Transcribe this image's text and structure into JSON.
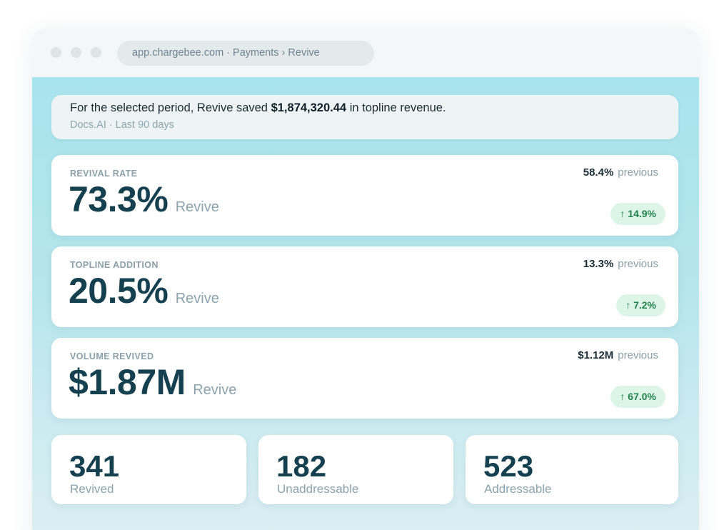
{
  "browser": {
    "url": "app.chargebee.com · Payments › Revive"
  },
  "banner": {
    "text_before": "For the selected period, Revive saved ",
    "amount": "$1,874,320.44",
    "text_after": " in topline revenue.",
    "subtitle": "Docs.AI · Last 90 days"
  },
  "metrics": [
    {
      "label": "REVIVAL RATE",
      "value": "73.3%",
      "source": "Revive",
      "previous_value": "58.4%",
      "previous_label": "previous",
      "change": "↑ 14.9%"
    },
    {
      "label": "TOPLINE ADDITION",
      "value": "20.5%",
      "source": "Revive",
      "previous_value": "13.3%",
      "previous_label": "previous",
      "change": "↑ 7.2%"
    },
    {
      "label": "VOLUME REVIVED",
      "value": "$1.87M",
      "source": "Revive",
      "previous_value": "$1.12M",
      "previous_label": "previous",
      "change": "↑ 67.0%"
    }
  ],
  "stats": [
    {
      "value": "341",
      "label": "Revived"
    },
    {
      "value": "182",
      "label": "Unaddressable"
    },
    {
      "value": "523",
      "label": "Addressable"
    }
  ],
  "colors": {
    "accent_dark": "#14404f",
    "positive": "#25814f",
    "positive_bg": "#dcf5e6"
  }
}
